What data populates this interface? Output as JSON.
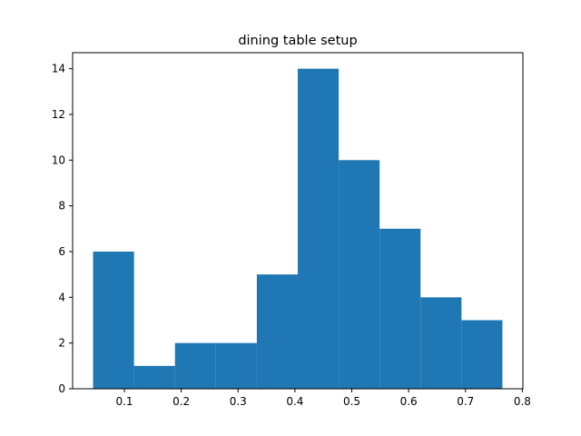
{
  "chart_data": {
    "type": "bar",
    "title": "dining table setup",
    "xlabel": "",
    "ylabel": "",
    "bins": [
      {
        "start": 0.045,
        "end": 0.117,
        "count": 6
      },
      {
        "start": 0.117,
        "end": 0.189,
        "count": 1
      },
      {
        "start": 0.189,
        "end": 0.261,
        "count": 2
      },
      {
        "start": 0.261,
        "end": 0.333,
        "count": 2
      },
      {
        "start": 0.333,
        "end": 0.405,
        "count": 5
      },
      {
        "start": 0.405,
        "end": 0.477,
        "count": 14
      },
      {
        "start": 0.477,
        "end": 0.549,
        "count": 10
      },
      {
        "start": 0.549,
        "end": 0.621,
        "count": 7
      },
      {
        "start": 0.621,
        "end": 0.693,
        "count": 4
      },
      {
        "start": 0.693,
        "end": 0.765,
        "count": 3
      }
    ],
    "xlim": [
      0.009,
      0.801
    ],
    "ylim": [
      0,
      14.7
    ],
    "xticks": [
      "0.1",
      "0.2",
      "0.3",
      "0.4",
      "0.5",
      "0.6",
      "0.7",
      "0.8"
    ],
    "yticks": [
      "0",
      "2",
      "4",
      "6",
      "8",
      "10",
      "12",
      "14"
    ],
    "grid": false,
    "colors": {
      "bar": "#1f77b4",
      "axis": "#000000"
    }
  }
}
